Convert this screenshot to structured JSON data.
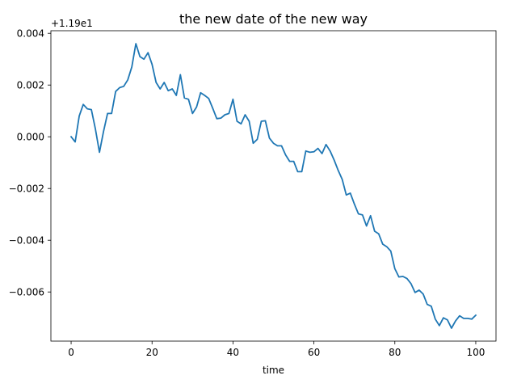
{
  "chart_data": {
    "type": "line",
    "title": "the new date of the new way",
    "xlabel": "time",
    "ylabel": "",
    "offset_label": "+1.19e1",
    "xlim": [
      -5,
      105
    ],
    "ylim": [
      -0.0079,
      0.0041
    ],
    "xticks": [
      0,
      20,
      40,
      60,
      80,
      100
    ],
    "xtick_labels": [
      "0",
      "20",
      "40",
      "60",
      "80",
      "100"
    ],
    "yticks": [
      -0.006,
      -0.004,
      -0.002,
      0.0,
      0.002,
      0.004
    ],
    "ytick_labels": [
      "−0.006",
      "−0.004",
      "−0.002",
      "0.000",
      "0.002",
      "0.004"
    ],
    "grid": false,
    "line_color": "#1f77b4",
    "x": [
      0,
      1,
      2,
      3,
      4,
      5,
      6,
      7,
      8,
      9,
      10,
      11,
      12,
      13,
      14,
      15,
      16,
      17,
      18,
      19,
      20,
      21,
      22,
      23,
      24,
      25,
      26,
      27,
      28,
      29,
      30,
      31,
      32,
      33,
      34,
      35,
      36,
      37,
      38,
      39,
      40,
      41,
      42,
      43,
      44,
      45,
      46,
      47,
      48,
      49,
      50,
      51,
      52,
      53,
      54,
      55,
      56,
      57,
      58,
      59,
      60,
      61,
      62,
      63,
      64,
      65,
      66,
      67,
      68,
      69,
      70,
      71,
      72,
      73,
      74,
      75,
      76,
      77,
      78,
      79,
      80,
      81,
      82,
      83,
      84,
      85,
      86,
      87,
      88,
      89,
      90,
      91,
      92,
      93,
      94,
      95,
      96,
      97,
      98,
      99,
      100
    ],
    "y": [
      0.0,
      -0.0002,
      0.0008,
      0.00125,
      0.00108,
      0.00105,
      0.0003,
      -0.0006,
      0.0002,
      0.0009,
      0.0009,
      0.00175,
      0.0019,
      0.00195,
      0.0022,
      0.0027,
      0.0036,
      0.0031,
      0.003,
      0.00325,
      0.0028,
      0.0021,
      0.00185,
      0.0021,
      0.00178,
      0.00185,
      0.0016,
      0.0024,
      0.0015,
      0.00145,
      0.0009,
      0.00115,
      0.0017,
      0.0016,
      0.00148,
      0.0011,
      0.0007,
      0.00072,
      0.00085,
      0.0009,
      0.00145,
      0.0006,
      0.0005,
      0.00085,
      0.0006,
      -0.00025,
      -0.0001,
      0.0006,
      0.00062,
      -5e-05,
      -0.00025,
      -0.00035,
      -0.00035,
      -0.0007,
      -0.00095,
      -0.00095,
      -0.00135,
      -0.00135,
      -0.00055,
      -0.0006,
      -0.00058,
      -0.00045,
      -0.00065,
      -0.0003,
      -0.00055,
      -0.0009,
      -0.0013,
      -0.00165,
      -0.00225,
      -0.00218,
      -0.0026,
      -0.00298,
      -0.00302,
      -0.00345,
      -0.00305,
      -0.00365,
      -0.00375,
      -0.00415,
      -0.00425,
      -0.00442,
      -0.0051,
      -0.00542,
      -0.0054,
      -0.00548,
      -0.00568,
      -0.00602,
      -0.00593,
      -0.00608,
      -0.00648,
      -0.00655,
      -0.00705,
      -0.0073,
      -0.007,
      -0.00708,
      -0.0074,
      -0.00712,
      -0.00692,
      -0.00702,
      -0.00702,
      -0.00705,
      -0.0069
    ]
  }
}
